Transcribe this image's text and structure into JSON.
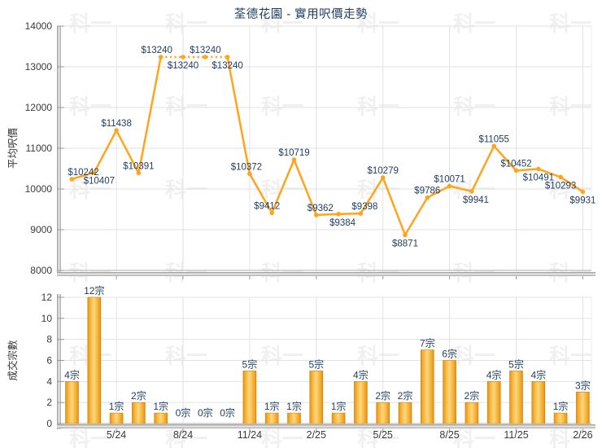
{
  "title": "荃德花園 - 實用呎價走勢",
  "watermark": "科一",
  "colors": {
    "line": "#FFA41D",
    "marker": "#FFA41D",
    "bar_edge": "#E18F12",
    "bar_center": "#FFD87E",
    "bar_stroke": "#CC8208",
    "label_text": "#1E3C5F",
    "axis_text": "#3a3a3a",
    "gridline": "#E2E2E2",
    "axis_line": "#AAAAAA"
  },
  "chart_data": [
    {
      "type": "line",
      "ylabel": "平均呎價",
      "ylim": [
        8000,
        14000
      ],
      "yticks": [
        8000,
        9000,
        10000,
        11000,
        12000,
        13000,
        14000
      ],
      "n_points": 24,
      "x_tick_indices": [
        2,
        5,
        8,
        11,
        14,
        17,
        20,
        23
      ],
      "x_tick_labels": [
        "5/24",
        "8/24",
        "11/24",
        "2/25",
        "5/25",
        "8/25",
        "11/25",
        "2/26"
      ],
      "values": [
        10242,
        10407,
        11438,
        10391,
        13240,
        13240,
        13240,
        13240,
        10372,
        9412,
        10719,
        9362,
        9384,
        9398,
        10279,
        8871,
        9786,
        10071,
        9941,
        11055,
        10452,
        10491,
        10293,
        9931
      ],
      "label_prefix": "$",
      "label_side": [
        "a",
        "b",
        "a",
        "a",
        "a",
        "b",
        "a",
        "b",
        "a",
        "a",
        "a",
        "a",
        "b",
        "a",
        "a",
        "b",
        "a",
        "a",
        "b",
        "a",
        "a",
        "b",
        "b",
        "b"
      ],
      "label_dx": [
        14,
        6,
        0,
        0,
        -5,
        0,
        0,
        0,
        -4,
        -6,
        0,
        5,
        5,
        5,
        0,
        0,
        0,
        0,
        5,
        0,
        0,
        0,
        0,
        0
      ],
      "dotted_range": [
        4,
        7
      ],
      "grid": true,
      "legend": null
    },
    {
      "type": "bar",
      "ylabel": "成交宗數",
      "ylim": [
        0,
        12
      ],
      "yticks": [
        0,
        2,
        4,
        6,
        8,
        10,
        12
      ],
      "n_points": 24,
      "x_tick_indices": [
        2,
        5,
        8,
        11,
        14,
        17,
        20,
        23
      ],
      "x_tick_labels": [
        "5/24",
        "8/24",
        "11/24",
        "2/25",
        "5/25",
        "8/25",
        "11/25",
        "2/26"
      ],
      "values": [
        4,
        12,
        1,
        2,
        1,
        0,
        0,
        0,
        5,
        1,
        1,
        5,
        1,
        4,
        2,
        2,
        7,
        6,
        2,
        4,
        5,
        4,
        1,
        3
      ],
      "label_suffix": "宗",
      "grid": true,
      "legend": null
    }
  ]
}
